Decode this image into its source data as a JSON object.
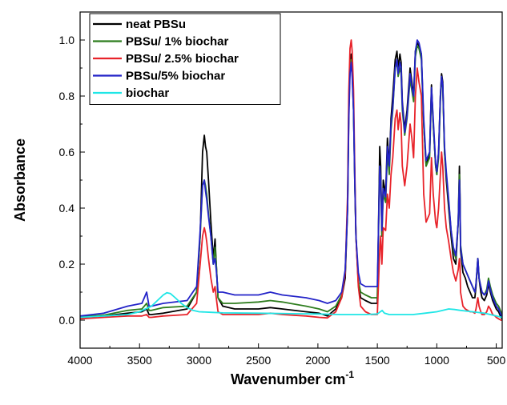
{
  "chart_data": {
    "type": "line",
    "xlabel": "Wavenumber cm",
    "xlabel_sup": "-1",
    "ylabel": "Absorbance",
    "xlim": [
      4000,
      450
    ],
    "ylim": [
      -0.1,
      1.1
    ],
    "x_reversed": true,
    "x_ticks": [
      "4000",
      "3500",
      "3000",
      "2500",
      "2000",
      "1500",
      "1000",
      "500"
    ],
    "y_ticks": [
      "0.0",
      "0.2",
      "0.4",
      "0.6",
      "0.8",
      "1.0"
    ],
    "legend_position": "top-left",
    "grid": false,
    "series": [
      {
        "name": "neat PBSu",
        "color": "#000000",
        "x": [
          4000,
          3800,
          3600,
          3480,
          3440,
          3420,
          3400,
          3300,
          3100,
          3020,
          2990,
          2970,
          2955,
          2945,
          2935,
          2920,
          2900,
          2880,
          2865,
          2855,
          2840,
          2800,
          2700,
          2500,
          2400,
          2300,
          2100,
          1990,
          1920,
          1850,
          1800,
          1770,
          1750,
          1740,
          1730,
          1720,
          1712,
          1700,
          1690,
          1680,
          1660,
          1640,
          1600,
          1550,
          1500,
          1480,
          1472,
          1462,
          1450,
          1430,
          1415,
          1400,
          1385,
          1370,
          1350,
          1335,
          1325,
          1310,
          1300,
          1290,
          1270,
          1250,
          1225,
          1210,
          1195,
          1180,
          1165,
          1150,
          1130,
          1110,
          1090,
          1060,
          1045,
          1030,
          1010,
          1000,
          985,
          970,
          960,
          950,
          935,
          920,
          900,
          880,
          860,
          840,
          820,
          810,
          805,
          800,
          780,
          760,
          740,
          720,
          700,
          680,
          670,
          655,
          645,
          630,
          620,
          600,
          580,
          565,
          550,
          530,
          510,
          500,
          480,
          460,
          450
        ],
        "y": [
          0.01,
          0.015,
          0.025,
          0.03,
          0.04,
          0.02,
          0.02,
          0.025,
          0.04,
          0.1,
          0.3,
          0.6,
          0.66,
          0.62,
          0.6,
          0.5,
          0.35,
          0.22,
          0.29,
          0.2,
          0.08,
          0.05,
          0.04,
          0.04,
          0.045,
          0.04,
          0.03,
          0.025,
          0.015,
          0.04,
          0.08,
          0.15,
          0.4,
          0.75,
          0.9,
          0.95,
          0.9,
          0.75,
          0.5,
          0.3,
          0.13,
          0.08,
          0.07,
          0.06,
          0.06,
          0.62,
          0.55,
          0.3,
          0.5,
          0.45,
          0.65,
          0.55,
          0.72,
          0.8,
          0.93,
          0.96,
          0.9,
          0.95,
          0.92,
          0.78,
          0.68,
          0.75,
          0.9,
          0.85,
          0.8,
          0.96,
          0.99,
          0.98,
          0.95,
          0.7,
          0.55,
          0.6,
          0.84,
          0.7,
          0.55,
          0.52,
          0.6,
          0.8,
          0.88,
          0.85,
          0.6,
          0.5,
          0.4,
          0.3,
          0.22,
          0.2,
          0.35,
          0.55,
          0.45,
          0.25,
          0.17,
          0.15,
          0.12,
          0.1,
          0.08,
          0.08,
          0.12,
          0.22,
          0.15,
          0.1,
          0.08,
          0.07,
          0.09,
          0.13,
          0.1,
          0.07,
          0.05,
          0.04,
          0.03,
          0.01,
          0.005
        ]
      },
      {
        "name": "PBSu/ 1% biochar",
        "color": "#2e7d1e",
        "x": [
          4000,
          3800,
          3600,
          3480,
          3440,
          3420,
          3400,
          3300,
          3100,
          3020,
          2990,
          2970,
          2955,
          2945,
          2935,
          2920,
          2900,
          2880,
          2865,
          2855,
          2840,
          2800,
          2700,
          2500,
          2400,
          2300,
          2100,
          1990,
          1920,
          1850,
          1800,
          1770,
          1750,
          1740,
          1730,
          1720,
          1712,
          1700,
          1690,
          1680,
          1660,
          1640,
          1600,
          1550,
          1500,
          1480,
          1472,
          1462,
          1450,
          1430,
          1415,
          1400,
          1385,
          1370,
          1350,
          1335,
          1325,
          1310,
          1300,
          1290,
          1270,
          1250,
          1225,
          1210,
          1195,
          1180,
          1165,
          1150,
          1130,
          1110,
          1090,
          1060,
          1045,
          1030,
          1010,
          1000,
          985,
          970,
          960,
          950,
          935,
          920,
          900,
          880,
          860,
          840,
          820,
          810,
          805,
          800,
          780,
          760,
          740,
          720,
          700,
          680,
          670,
          655,
          645,
          630,
          620,
          600,
          580,
          565,
          550,
          530,
          510,
          500,
          480,
          460,
          450
        ],
        "y": [
          0.012,
          0.018,
          0.035,
          0.04,
          0.06,
          0.035,
          0.035,
          0.045,
          0.05,
          0.1,
          0.3,
          0.48,
          0.5,
          0.48,
          0.45,
          0.38,
          0.3,
          0.2,
          0.26,
          0.2,
          0.08,
          0.06,
          0.06,
          0.065,
          0.07,
          0.065,
          0.05,
          0.04,
          0.03,
          0.05,
          0.09,
          0.17,
          0.42,
          0.78,
          0.9,
          0.93,
          0.88,
          0.75,
          0.52,
          0.3,
          0.14,
          0.1,
          0.09,
          0.08,
          0.08,
          0.55,
          0.5,
          0.3,
          0.45,
          0.42,
          0.6,
          0.52,
          0.68,
          0.75,
          0.9,
          0.92,
          0.87,
          0.9,
          0.88,
          0.75,
          0.66,
          0.72,
          0.86,
          0.82,
          0.78,
          0.94,
          0.98,
          0.97,
          0.93,
          0.7,
          0.55,
          0.58,
          0.82,
          0.7,
          0.55,
          0.52,
          0.58,
          0.78,
          0.86,
          0.83,
          0.6,
          0.52,
          0.42,
          0.32,
          0.25,
          0.22,
          0.35,
          0.52,
          0.43,
          0.27,
          0.2,
          0.18,
          0.16,
          0.14,
          0.12,
          0.1,
          0.13,
          0.22,
          0.15,
          0.12,
          0.1,
          0.09,
          0.11,
          0.15,
          0.12,
          0.09,
          0.07,
          0.06,
          0.05,
          0.03,
          0.02
        ]
      },
      {
        "name": "PBSu/ 2.5% biochar",
        "color": "#e8232a",
        "x": [
          4000,
          3800,
          3600,
          3480,
          3440,
          3420,
          3400,
          3300,
          3100,
          3020,
          2990,
          2970,
          2955,
          2945,
          2935,
          2920,
          2900,
          2880,
          2865,
          2855,
          2840,
          2800,
          2700,
          2500,
          2400,
          2300,
          2100,
          1990,
          1920,
          1850,
          1800,
          1770,
          1750,
          1740,
          1730,
          1720,
          1712,
          1700,
          1690,
          1680,
          1660,
          1640,
          1600,
          1550,
          1500,
          1480,
          1472,
          1462,
          1450,
          1430,
          1415,
          1400,
          1385,
          1370,
          1350,
          1335,
          1325,
          1310,
          1300,
          1290,
          1270,
          1250,
          1225,
          1210,
          1195,
          1180,
          1165,
          1150,
          1130,
          1110,
          1090,
          1060,
          1045,
          1030,
          1010,
          1000,
          985,
          970,
          960,
          950,
          935,
          920,
          900,
          880,
          860,
          840,
          820,
          810,
          805,
          800,
          780,
          760,
          740,
          720,
          700,
          680,
          670,
          655,
          645,
          630,
          620,
          600,
          580,
          565,
          550,
          530,
          510,
          500,
          480,
          460,
          450
        ],
        "y": [
          0.005,
          0.01,
          0.015,
          0.015,
          0.02,
          0.01,
          0.01,
          0.015,
          0.02,
          0.06,
          0.2,
          0.3,
          0.33,
          0.31,
          0.28,
          0.22,
          0.15,
          0.1,
          0.12,
          0.08,
          0.03,
          0.02,
          0.02,
          0.02,
          0.025,
          0.02,
          0.015,
          0.01,
          0.008,
          0.03,
          0.08,
          0.17,
          0.45,
          0.82,
          0.97,
          1.0,
          0.96,
          0.82,
          0.55,
          0.3,
          0.12,
          0.05,
          0.03,
          0.02,
          0.02,
          0.25,
          0.3,
          0.2,
          0.33,
          0.32,
          0.45,
          0.4,
          0.52,
          0.58,
          0.72,
          0.75,
          0.68,
          0.74,
          0.7,
          0.55,
          0.48,
          0.55,
          0.7,
          0.65,
          0.58,
          0.8,
          0.9,
          0.85,
          0.8,
          0.45,
          0.35,
          0.38,
          0.58,
          0.45,
          0.35,
          0.33,
          0.4,
          0.52,
          0.6,
          0.55,
          0.4,
          0.33,
          0.28,
          0.22,
          0.17,
          0.14,
          0.18,
          0.22,
          0.2,
          0.1,
          0.05,
          0.04,
          0.035,
          0.03,
          0.03,
          0.025,
          0.04,
          0.08,
          0.05,
          0.03,
          0.02,
          0.02,
          0.03,
          0.05,
          0.04,
          0.02,
          0.015,
          0.01,
          0.005,
          0.0,
          0.0
        ]
      },
      {
        "name": "PBSu/5% biochar",
        "color": "#2323c8",
        "x": [
          4000,
          3800,
          3600,
          3480,
          3440,
          3420,
          3400,
          3300,
          3100,
          3020,
          2990,
          2970,
          2955,
          2945,
          2935,
          2920,
          2900,
          2880,
          2865,
          2855,
          2840,
          2800,
          2700,
          2500,
          2400,
          2300,
          2100,
          1990,
          1920,
          1850,
          1800,
          1770,
          1750,
          1740,
          1730,
          1720,
          1712,
          1700,
          1690,
          1680,
          1660,
          1640,
          1600,
          1550,
          1500,
          1480,
          1472,
          1462,
          1450,
          1430,
          1415,
          1400,
          1385,
          1370,
          1350,
          1335,
          1325,
          1310,
          1300,
          1290,
          1270,
          1250,
          1225,
          1210,
          1195,
          1180,
          1165,
          1150,
          1130,
          1110,
          1090,
          1060,
          1045,
          1030,
          1010,
          1000,
          985,
          970,
          960,
          950,
          935,
          920,
          900,
          880,
          860,
          840,
          820,
          810,
          805,
          800,
          780,
          760,
          740,
          720,
          700,
          680,
          670,
          655,
          645,
          630,
          620,
          600,
          580,
          565,
          550,
          530,
          510,
          500,
          480,
          460,
          450
        ],
        "y": [
          0.015,
          0.025,
          0.05,
          0.06,
          0.1,
          0.05,
          0.05,
          0.06,
          0.07,
          0.12,
          0.32,
          0.48,
          0.5,
          0.46,
          0.43,
          0.37,
          0.3,
          0.2,
          0.22,
          0.18,
          0.1,
          0.1,
          0.09,
          0.09,
          0.1,
          0.09,
          0.08,
          0.07,
          0.06,
          0.07,
          0.1,
          0.18,
          0.4,
          0.72,
          0.88,
          0.92,
          0.87,
          0.75,
          0.5,
          0.3,
          0.17,
          0.13,
          0.12,
          0.12,
          0.12,
          0.55,
          0.5,
          0.32,
          0.47,
          0.44,
          0.62,
          0.55,
          0.7,
          0.76,
          0.9,
          0.93,
          0.88,
          0.92,
          0.9,
          0.77,
          0.67,
          0.73,
          0.88,
          0.83,
          0.8,
          0.96,
          1.0,
          0.99,
          0.95,
          0.72,
          0.57,
          0.6,
          0.83,
          0.72,
          0.56,
          0.53,
          0.6,
          0.8,
          0.87,
          0.84,
          0.62,
          0.53,
          0.43,
          0.32,
          0.26,
          0.23,
          0.35,
          0.5,
          0.42,
          0.26,
          0.2,
          0.18,
          0.16,
          0.14,
          0.12,
          0.1,
          0.13,
          0.22,
          0.15,
          0.12,
          0.1,
          0.09,
          0.1,
          0.14,
          0.11,
          0.08,
          0.06,
          0.05,
          0.04,
          0.02,
          0.01
        ]
      },
      {
        "name": "biochar",
        "color": "#1ee6e6",
        "x": [
          4000,
          3800,
          3600,
          3500,
          3400,
          3350,
          3300,
          3270,
          3240,
          3200,
          3150,
          3100,
          3050,
          3000,
          2900,
          2800,
          2500,
          2000,
          1800,
          1600,
          1500,
          1460,
          1440,
          1400,
          1300,
          1200,
          1100,
          1000,
          950,
          900,
          850,
          800,
          700,
          600,
          500,
          450
        ],
        "y": [
          0.01,
          0.015,
          0.02,
          0.03,
          0.05,
          0.07,
          0.09,
          0.098,
          0.095,
          0.08,
          0.06,
          0.045,
          0.035,
          0.03,
          0.028,
          0.026,
          0.025,
          0.022,
          0.02,
          0.02,
          0.022,
          0.035,
          0.025,
          0.02,
          0.02,
          0.02,
          0.025,
          0.03,
          0.035,
          0.04,
          0.038,
          0.035,
          0.03,
          0.025,
          0.015,
          0.01
        ]
      }
    ]
  }
}
